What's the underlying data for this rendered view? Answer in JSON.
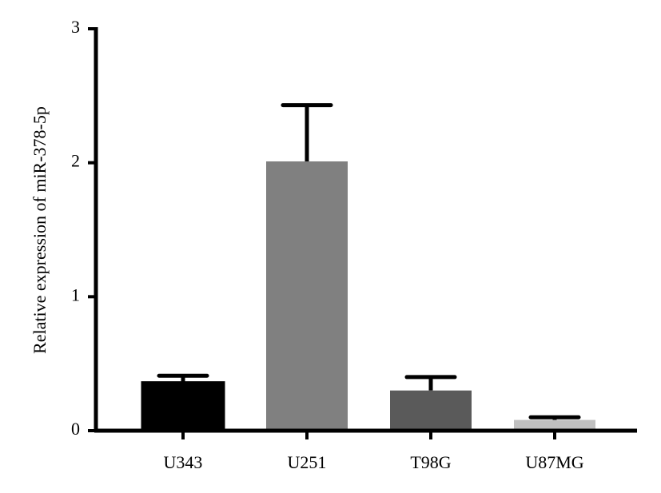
{
  "chart_data": {
    "type": "bar",
    "y_label": "Relative expression of miR-378-5p",
    "categories": [
      "U343",
      "U251",
      "T98G",
      "U87MG"
    ],
    "values": [
      0.36,
      2.01,
      0.3,
      0.08
    ],
    "errors": [
      0.05,
      0.42,
      0.1,
      0.02
    ],
    "colors": [
      "#000000",
      "#808080",
      "#5a5a5a",
      "#c0c0c0"
    ],
    "ylim": [
      0,
      3
    ],
    "yticks": [
      0,
      1,
      2,
      3
    ],
    "grid": false
  }
}
